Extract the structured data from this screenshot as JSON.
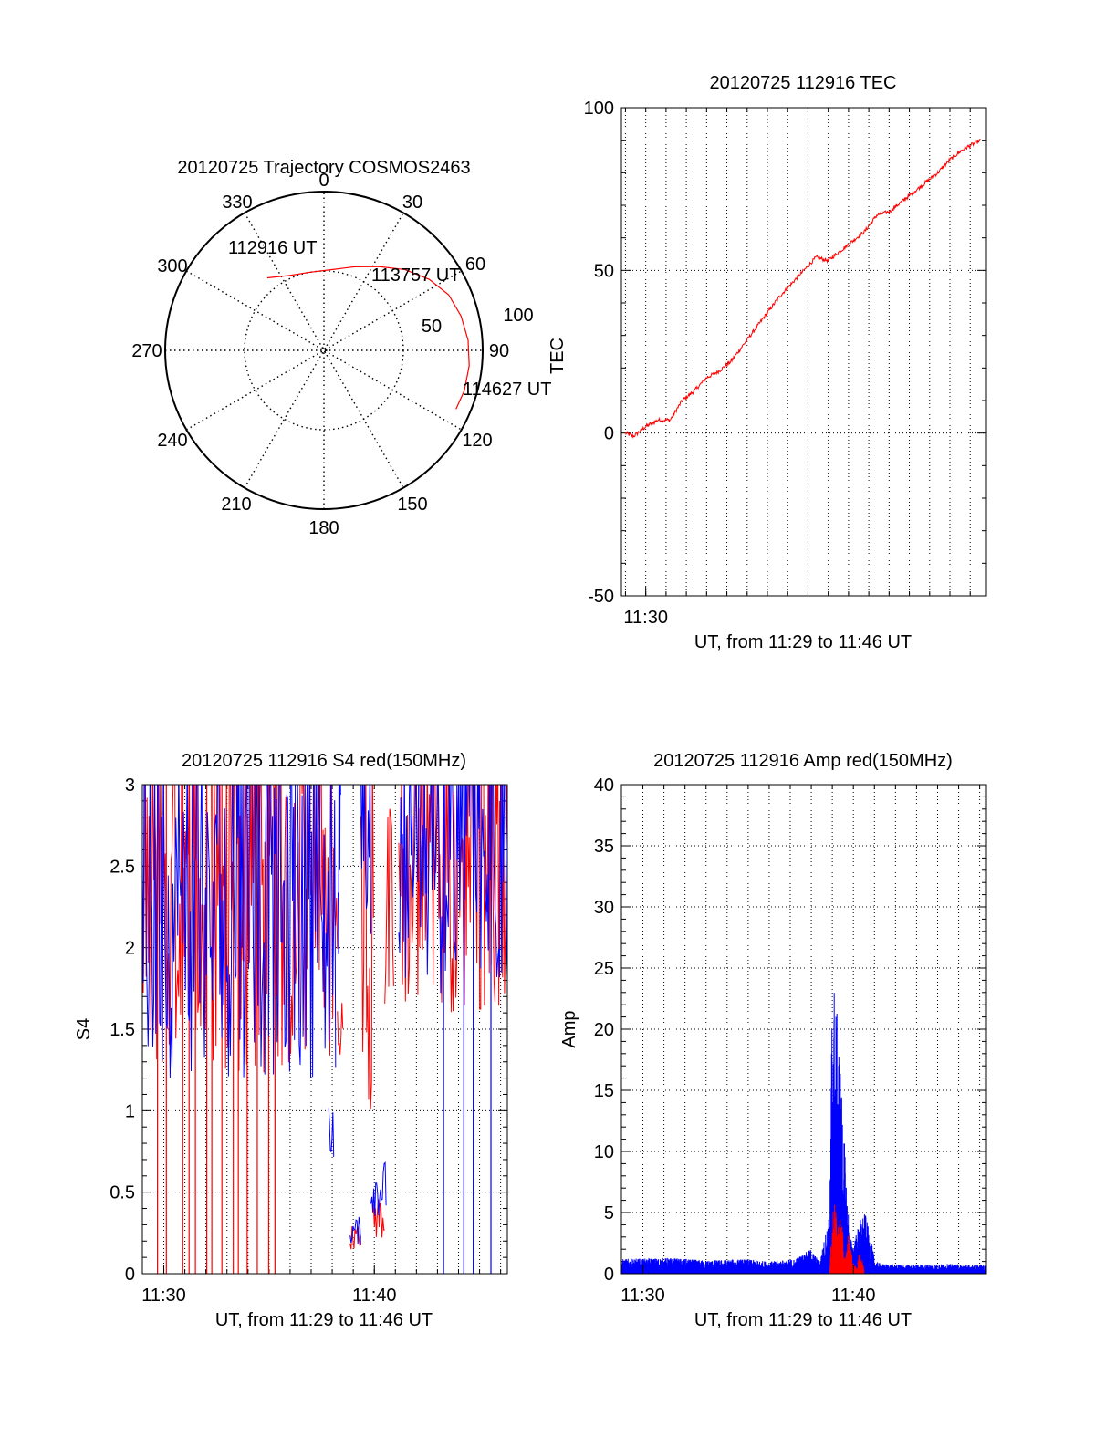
{
  "colors": {
    "red": "#ff0000",
    "blue": "#0000ff",
    "axis": "#000000",
    "grid": "#000000"
  },
  "chart_data": [
    {
      "id": "polar",
      "type": "polar-trajectory",
      "title": "20120725 Trajectory COSMOS2463",
      "azimuth_labels": [
        "0",
        "30",
        "60",
        "90",
        "120",
        "150",
        "180",
        "210",
        "240",
        "270",
        "300",
        "330"
      ],
      "radius_labels": [
        "50",
        "100"
      ],
      "radius_values": [
        50,
        100
      ],
      "trajectory": {
        "start_time_label": "112916 UT",
        "mid_time_label": "113757 UT",
        "end_time_label": "114627 UT",
        "points": [
          {
            "az": -38,
            "zen": 58
          },
          {
            "az": -25,
            "zen": 52
          },
          {
            "az": -10,
            "zen": 50
          },
          {
            "az": 5,
            "zen": 51
          },
          {
            "az": 20,
            "zen": 56
          },
          {
            "az": 33,
            "zen": 63
          },
          {
            "az": 45,
            "zen": 72
          },
          {
            "az": 56,
            "zen": 80
          },
          {
            "az": 66,
            "zen": 86
          },
          {
            "az": 76,
            "zen": 89
          },
          {
            "az": 86,
            "zen": 91
          },
          {
            "az": 96,
            "zen": 92
          },
          {
            "az": 106,
            "zen": 92
          },
          {
            "az": 114,
            "zen": 91
          }
        ]
      }
    },
    {
      "id": "tec",
      "type": "line",
      "title": "20120725 112916 TEC",
      "xlabel": "UT, from 11:29 to 11:46 UT",
      "ylabel": "TEC",
      "xlim": [
        11.48,
        11.78
      ],
      "ylim": [
        -50,
        100
      ],
      "yticks": [
        -50,
        0,
        50,
        100
      ],
      "xtick_labels": [
        {
          "x": 11.5,
          "label": "11:30"
        }
      ],
      "grid": true,
      "series": [
        {
          "color": "#ff0000",
          "x": [
            11.4833,
            11.49,
            11.5,
            11.51,
            11.52,
            11.53,
            11.54,
            11.55,
            11.56,
            11.57,
            11.58,
            11.59,
            11.6,
            11.61,
            11.62,
            11.63,
            11.64,
            11.65,
            11.66,
            11.67,
            11.68,
            11.69,
            11.7,
            11.71,
            11.72,
            11.73,
            11.74,
            11.75,
            11.76,
            11.77,
            11.775
          ],
          "y": [
            0,
            -1,
            2,
            4,
            4,
            10,
            13,
            17,
            19,
            22,
            27,
            32,
            37,
            42,
            46,
            50,
            54,
            53,
            56,
            59,
            62,
            67,
            68,
            71,
            74,
            77,
            80,
            84,
            87,
            89,
            90
          ]
        }
      ]
    },
    {
      "id": "s4",
      "type": "line",
      "title": "20120725 112916 S4 red(150MHz)",
      "xlabel": "UT, from 11:29 to 11:46 UT",
      "ylabel": "S4",
      "xlim": [
        11.483,
        11.772
      ],
      "ylim": [
        0,
        3
      ],
      "yticks": [
        0,
        0.5,
        1,
        1.5,
        2,
        2.5,
        3
      ],
      "ytick_labels": [
        "0",
        "0.5",
        "1",
        "1.5",
        "2",
        "2.5",
        "3"
      ],
      "xtick_labels": [
        {
          "x": 11.5,
          "label": "11:30"
        },
        {
          "x": 11.6667,
          "label": "11:40"
        }
      ],
      "grid": true,
      "series": [
        {
          "name": "red",
          "color": "#ff0000",
          "segments": [
            {
              "from": 11.483,
              "to": 11.6375,
              "min": 1.2,
              "max": 3.0
            },
            {
              "from": 11.6375,
              "to": 11.6417,
              "min": 1.3,
              "max": 1.7
            },
            {
              "from": 11.6475,
              "to": 11.656,
              "min": 0.15,
              "max": 0.3
            },
            {
              "from": 11.656,
              "to": 11.666,
              "min": 1.0,
              "max": 3.0
            },
            {
              "from": 11.666,
              "to": 11.675,
              "min": 0.2,
              "max": 0.5
            },
            {
              "from": 11.675,
              "to": 11.682,
              "min": 1.3,
              "max": 2.9
            },
            {
              "from": 11.686,
              "to": 11.772,
              "min": 1.6,
              "max": 3.0
            }
          ],
          "spikes": [
            11.495,
            11.502,
            11.515,
            11.52,
            11.525,
            11.534,
            11.538,
            11.546,
            11.555,
            11.559,
            11.566,
            11.574,
            11.583,
            11.588
          ]
        },
        {
          "name": "blue",
          "color": "#0000ff",
          "segments": [
            {
              "from": 11.483,
              "to": 11.636,
              "min": 1.2,
              "max": 3.0
            },
            {
              "from": 11.6305,
              "to": 11.6345,
              "min": 0.7,
              "max": 1.1
            },
            {
              "from": 11.638,
              "to": 11.64,
              "min": 1.8,
              "max": 3.0
            },
            {
              "from": 11.6475,
              "to": 11.656,
              "min": 0.17,
              "max": 0.35
            },
            {
              "from": 11.656,
              "to": 11.664,
              "min": 2.0,
              "max": 3.0
            },
            {
              "from": 11.664,
              "to": 11.676,
              "min": 0.35,
              "max": 0.7
            },
            {
              "from": 11.686,
              "to": 11.772,
              "min": 1.7,
              "max": 3.0
            }
          ],
          "spikes": [
            11.7215,
            11.7375,
            11.745,
            11.759
          ]
        }
      ]
    },
    {
      "id": "amp",
      "type": "line",
      "title": "20120725 112916 Amp red(150MHz)",
      "xlabel": "UT, from 11:29 to 11:46 UT",
      "ylabel": "Amp",
      "xlim": [
        11.483,
        11.772
      ],
      "ylim": [
        0,
        40
      ],
      "yticks": [
        0,
        5,
        10,
        15,
        20,
        25,
        30,
        35,
        40
      ],
      "xtick_labels": [
        {
          "x": 11.5,
          "label": "11:30"
        },
        {
          "x": 11.6667,
          "label": "11:40"
        }
      ],
      "grid": true,
      "series": [
        {
          "name": "red",
          "color": "#ff0000",
          "x": [
            11.648,
            11.651,
            11.654,
            11.657,
            11.66,
            11.663,
            11.666,
            11.669,
            11.672,
            11.675
          ],
          "y": [
            0.5,
            6.5,
            4,
            5,
            1,
            3.5,
            1,
            0.5,
            2,
            0.5
          ]
        },
        {
          "name": "blue",
          "color": "#0000ff",
          "x": [
            11.483,
            11.52,
            11.55,
            11.58,
            11.6,
            11.62,
            11.633,
            11.64,
            11.648,
            11.65,
            11.652,
            11.655,
            11.658,
            11.661,
            11.664,
            11.667,
            11.672,
            11.676,
            11.68,
            11.684,
            11.69,
            11.71,
            11.74,
            11.772
          ],
          "y": [
            1.2,
            1.3,
            1.1,
            1.2,
            1.0,
            1.2,
            2.0,
            1.0,
            5.0,
            27.0,
            23.0,
            20.0,
            14.0,
            8.0,
            3.0,
            2.5,
            4.5,
            5.0,
            3.0,
            1.0,
            0.8,
            0.7,
            0.8,
            0.7
          ]
        }
      ]
    }
  ]
}
